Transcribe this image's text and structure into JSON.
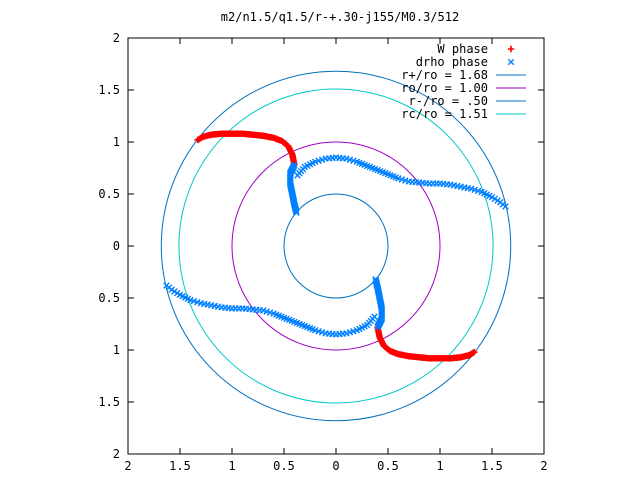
{
  "chart_data": {
    "type": "scatter",
    "title": "m2/n1.5/q1.5/r-+.30-j155/M0.3/512",
    "xlim": [
      -2,
      2
    ],
    "ylim": [
      -2,
      2
    ],
    "x_ticks": [
      -2,
      -1.5,
      -1,
      -0.5,
      0,
      0.5,
      1,
      1.5,
      2
    ],
    "y_ticks": [
      -2,
      -1.5,
      -1,
      -0.5,
      0,
      0.5,
      1,
      1.5,
      2
    ],
    "x_tick_labels": [
      "2",
      "1.5",
      "1",
      "0.5",
      "0",
      "0.5",
      "1",
      "1.5",
      "2"
    ],
    "y_tick_labels": [
      "2",
      "1.5",
      "1",
      "0.5",
      "0",
      "0.5",
      "1",
      "1.5",
      "2"
    ],
    "grid": false,
    "legend_position": "top-right",
    "legend": [
      {
        "label": "W phase",
        "marker": "plus",
        "color": "#ff0000"
      },
      {
        "label": "drho phase",
        "marker": "cross",
        "color": "#0080ff"
      },
      {
        "label": "r+/ro = 1.68",
        "marker": "line",
        "color": "#0070c0"
      },
      {
        "label": "ro/ro = 1.00",
        "marker": "line",
        "color": "#a000c0"
      },
      {
        "label": "r-/ro = .50",
        "marker": "line",
        "color": "#0070c0"
      },
      {
        "label": "rc/ro = 1.51",
        "marker": "line",
        "color": "#00c8c8"
      }
    ],
    "circles": [
      {
        "name": "r+/ro",
        "r": 1.68,
        "color": "#0070c0"
      },
      {
        "name": "ro/ro",
        "r": 1.0,
        "color": "#a000c0"
      },
      {
        "name": "r-/ro",
        "r": 0.5,
        "color": "#0070c0"
      },
      {
        "name": "rc/ro",
        "r": 1.51,
        "color": "#00c8c8"
      }
    ],
    "w_phase": {
      "color": "#ff0000",
      "marker": "plus",
      "arms": [
        [
          [
            -1.33,
            1.02
          ],
          [
            -1.28,
            1.05
          ],
          [
            -1.2,
            1.07
          ],
          [
            -1.1,
            1.08
          ],
          [
            -1.0,
            1.08
          ],
          [
            -0.9,
            1.08
          ],
          [
            -0.8,
            1.07
          ],
          [
            -0.7,
            1.06
          ],
          [
            -0.6,
            1.04
          ],
          [
            -0.52,
            1.01
          ],
          [
            -0.46,
            0.96
          ],
          [
            -0.42,
            0.88
          ],
          [
            -0.4,
            0.78
          ]
        ],
        [
          [
            1.33,
            -1.02
          ],
          [
            1.28,
            -1.05
          ],
          [
            1.2,
            -1.07
          ],
          [
            1.1,
            -1.08
          ],
          [
            1.0,
            -1.08
          ],
          [
            0.9,
            -1.08
          ],
          [
            0.8,
            -1.07
          ],
          [
            0.7,
            -1.06
          ],
          [
            0.6,
            -1.04
          ],
          [
            0.52,
            -1.01
          ],
          [
            0.46,
            -0.96
          ],
          [
            0.42,
            -0.88
          ],
          [
            0.4,
            -0.78
          ]
        ]
      ]
    },
    "drho_phase": {
      "color": "#0080ff",
      "marker": "cross",
      "arms": [
        [
          [
            -0.4,
            0.78
          ],
          [
            -0.44,
            0.7
          ],
          [
            -0.44,
            0.6
          ],
          [
            -0.42,
            0.5
          ],
          [
            -0.4,
            0.4
          ],
          [
            -0.38,
            0.32
          ]
        ],
        [
          [
            -0.37,
            0.68
          ],
          [
            -0.3,
            0.76
          ],
          [
            -0.2,
            0.81
          ],
          [
            -0.1,
            0.84
          ],
          [
            0.0,
            0.85
          ],
          [
            0.1,
            0.84
          ],
          [
            0.2,
            0.81
          ],
          [
            0.3,
            0.77
          ],
          [
            0.4,
            0.73
          ],
          [
            0.5,
            0.69
          ],
          [
            0.6,
            0.65
          ],
          [
            0.7,
            0.62
          ],
          [
            0.8,
            0.61
          ],
          [
            0.9,
            0.6
          ],
          [
            1.0,
            0.6
          ],
          [
            1.1,
            0.59
          ],
          [
            1.2,
            0.57
          ],
          [
            1.3,
            0.55
          ],
          [
            1.4,
            0.52
          ],
          [
            1.5,
            0.47
          ],
          [
            1.58,
            0.42
          ],
          [
            1.63,
            0.38
          ]
        ],
        [
          [
            0.4,
            -0.78
          ],
          [
            0.44,
            -0.7
          ],
          [
            0.44,
            -0.6
          ],
          [
            0.42,
            -0.5
          ],
          [
            0.4,
            -0.4
          ],
          [
            0.38,
            -0.32
          ]
        ],
        [
          [
            0.37,
            -0.68
          ],
          [
            0.3,
            -0.76
          ],
          [
            0.2,
            -0.81
          ],
          [
            0.1,
            -0.84
          ],
          [
            0.0,
            -0.85
          ],
          [
            -0.1,
            -0.84
          ],
          [
            -0.2,
            -0.81
          ],
          [
            -0.3,
            -0.77
          ],
          [
            -0.4,
            -0.73
          ],
          [
            -0.5,
            -0.69
          ],
          [
            -0.6,
            -0.65
          ],
          [
            -0.7,
            -0.62
          ],
          [
            -0.8,
            -0.61
          ],
          [
            -0.9,
            -0.6
          ],
          [
            -1.0,
            -0.6
          ],
          [
            -1.1,
            -0.59
          ],
          [
            -1.2,
            -0.57
          ],
          [
            -1.3,
            -0.55
          ],
          [
            -1.4,
            -0.52
          ],
          [
            -1.5,
            -0.47
          ],
          [
            -1.58,
            -0.42
          ],
          [
            -1.63,
            -0.38
          ]
        ]
      ]
    }
  }
}
